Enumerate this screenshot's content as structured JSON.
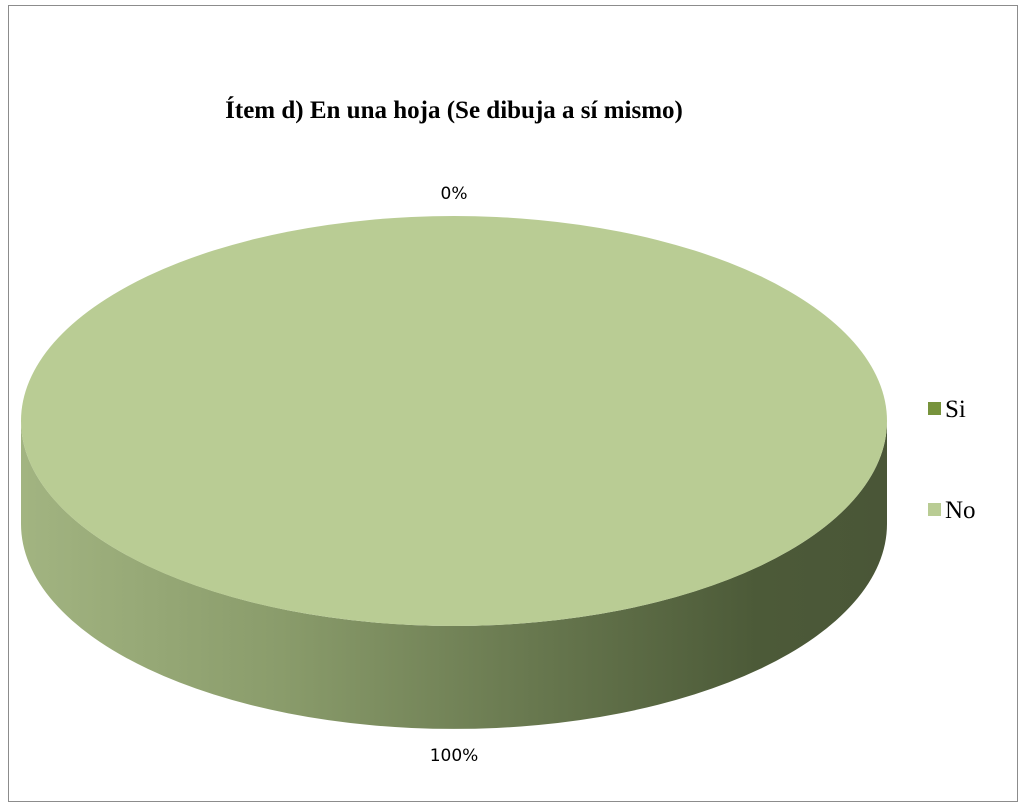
{
  "chart_data": {
    "type": "pie",
    "title": "Ítem d) En una hoja (Se dibuja a sí mismo)",
    "categories": [
      "Si",
      "No"
    ],
    "values": [
      0,
      100
    ],
    "labels": [
      "0%",
      "100%"
    ],
    "colors": [
      "#77933c",
      "#b9cc94"
    ],
    "legend_position": "right",
    "three_d": true
  }
}
